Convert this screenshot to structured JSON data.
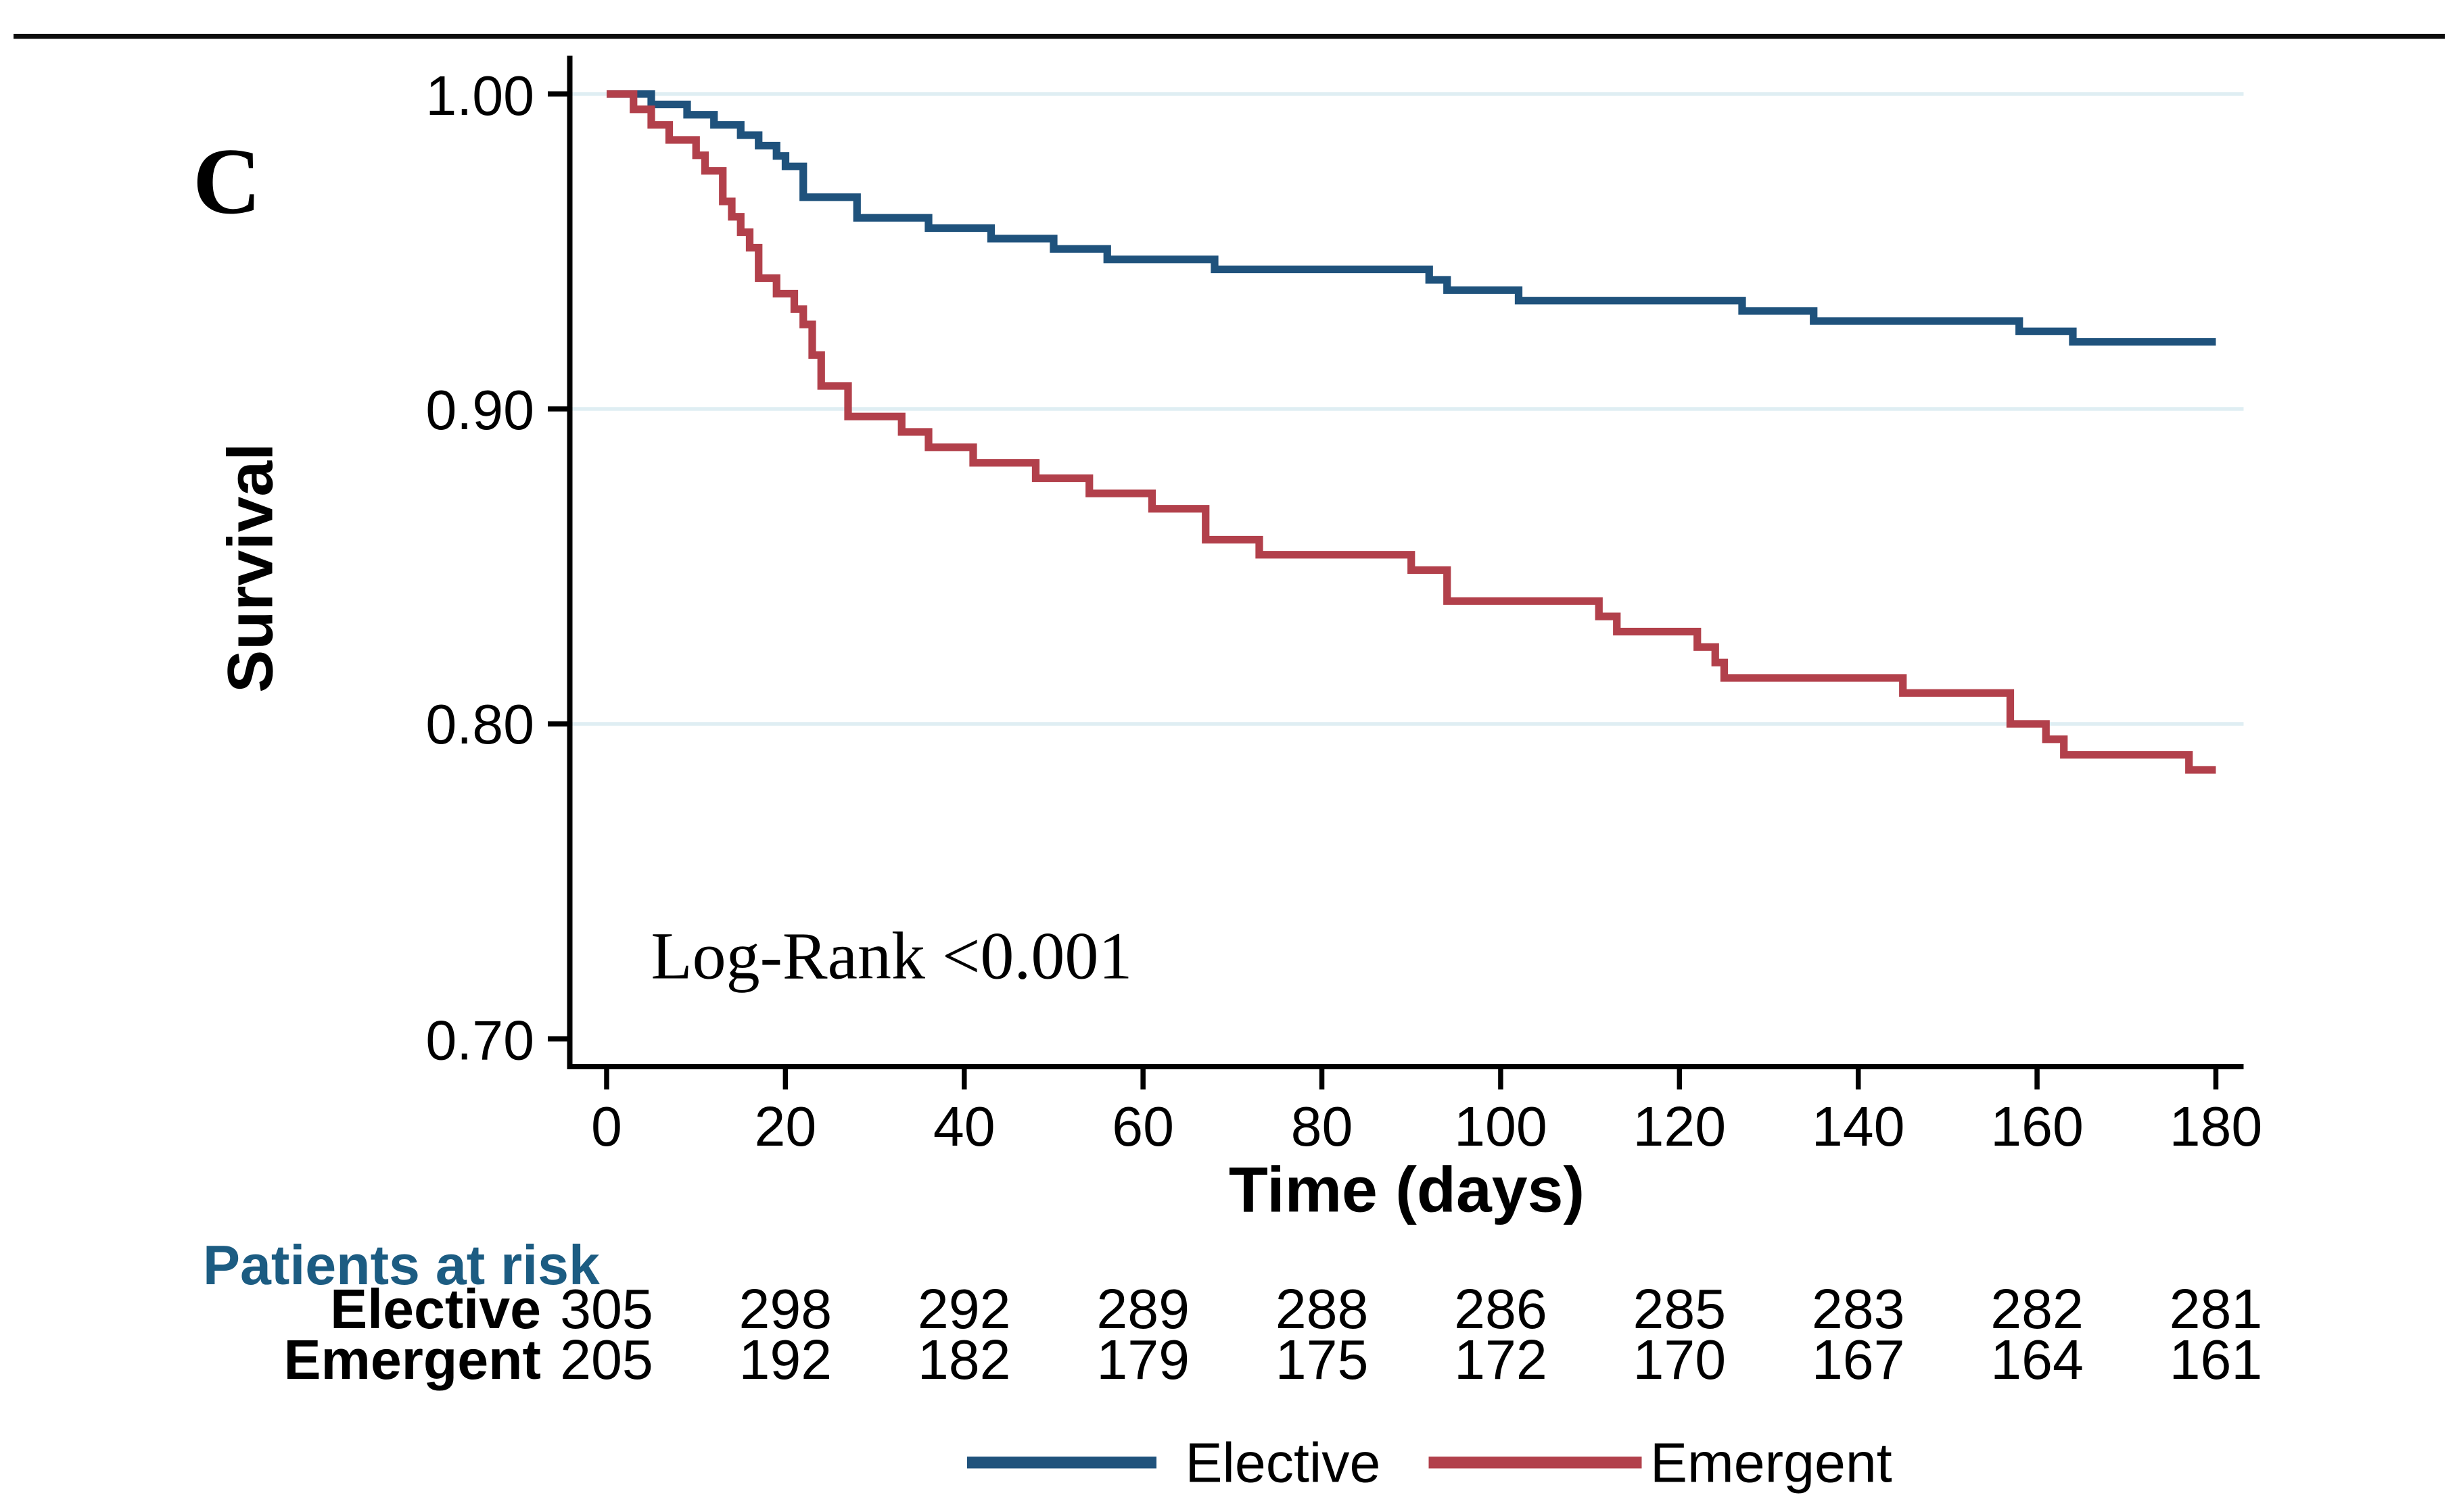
{
  "panel_label": "C",
  "chart_data": {
    "type": "line",
    "step": true,
    "title": "",
    "xlabel": "Time (days)",
    "ylabel": "Survival",
    "annotation": "Log-Rank <0.001",
    "xlim": [
      0,
      180
    ],
    "ylim": [
      0.7,
      1.0
    ],
    "x_ticks": [
      0,
      20,
      40,
      60,
      80,
      100,
      120,
      140,
      160,
      180
    ],
    "y_ticks": [
      {
        "value": 1.0,
        "label": "1.00"
      },
      {
        "value": 0.9,
        "label": "0.90"
      },
      {
        "value": 0.8,
        "label": "0.80"
      },
      {
        "value": 0.7,
        "label": "0.70"
      }
    ],
    "y_gridlines": [
      1.0,
      0.9,
      0.8
    ],
    "grid_color": "#dfeef3",
    "legend_position": "bottom",
    "series": [
      {
        "name": "Elective",
        "color": "#1f527c",
        "steps": [
          [
            0,
            1.0
          ],
          [
            5,
            0.9967
          ],
          [
            9,
            0.9934
          ],
          [
            12,
            0.9902
          ],
          [
            15,
            0.9869
          ],
          [
            17,
            0.9836
          ],
          [
            19,
            0.9803
          ],
          [
            20,
            0.977
          ],
          [
            22,
            0.9672
          ],
          [
            28,
            0.9607
          ],
          [
            36,
            0.9574
          ],
          [
            43,
            0.9541
          ],
          [
            50,
            0.9508
          ],
          [
            56,
            0.9475
          ],
          [
            68,
            0.9443
          ],
          [
            92,
            0.941
          ],
          [
            94,
            0.9377
          ],
          [
            102,
            0.9344
          ],
          [
            127,
            0.9311
          ],
          [
            135,
            0.9279
          ],
          [
            158,
            0.9246
          ],
          [
            164,
            0.9213
          ]
        ],
        "end_time": 180,
        "final_survival": 0.9213
      },
      {
        "name": "Emergent",
        "color": "#b2404b",
        "steps": [
          [
            0,
            1.0
          ],
          [
            3,
            0.9951
          ],
          [
            5,
            0.9902
          ],
          [
            7,
            0.9854
          ],
          [
            10,
            0.9805
          ],
          [
            11,
            0.9756
          ],
          [
            13,
            0.9659
          ],
          [
            14,
            0.961
          ],
          [
            15,
            0.9561
          ],
          [
            16,
            0.9512
          ],
          [
            17,
            0.9415
          ],
          [
            19,
            0.9366
          ],
          [
            21,
            0.9317
          ],
          [
            22,
            0.9268
          ],
          [
            23,
            0.9171
          ],
          [
            24,
            0.9073
          ],
          [
            27,
            0.8976
          ],
          [
            33,
            0.8927
          ],
          [
            36,
            0.8878
          ],
          [
            41,
            0.8829
          ],
          [
            48,
            0.878
          ],
          [
            54,
            0.8732
          ],
          [
            61,
            0.8683
          ],
          [
            67,
            0.8585
          ],
          [
            73,
            0.8537
          ],
          [
            90,
            0.8488
          ],
          [
            94,
            0.839
          ],
          [
            111,
            0.8341
          ],
          [
            113,
            0.8293
          ],
          [
            122,
            0.8244
          ],
          [
            124,
            0.8195
          ],
          [
            125,
            0.8146
          ],
          [
            145,
            0.8098
          ],
          [
            157,
            0.8
          ],
          [
            161,
            0.7951
          ],
          [
            163,
            0.7902
          ],
          [
            177,
            0.7854
          ]
        ],
        "end_time": 180,
        "final_survival": 0.7854
      }
    ]
  },
  "risk_table": {
    "title": "Patients at risk",
    "time_points": [
      0,
      20,
      40,
      60,
      80,
      100,
      120,
      140,
      160,
      180
    ],
    "rows": [
      {
        "label": "Elective",
        "values": [
          305,
          298,
          292,
          289,
          288,
          286,
          285,
          283,
          282,
          281
        ]
      },
      {
        "label": "Emergent",
        "values": [
          205,
          192,
          182,
          179,
          175,
          172,
          170,
          167,
          164,
          161
        ]
      }
    ]
  },
  "legend": {
    "items": [
      {
        "label": "Elective",
        "color": "#1f527c"
      },
      {
        "label": "Emergent",
        "color": "#b2404b"
      }
    ]
  },
  "colors": {
    "axis": "#000000",
    "gridline": "#dfeef3",
    "risk_title": "#1c5c82",
    "top_rule": "#0d0d0d"
  }
}
